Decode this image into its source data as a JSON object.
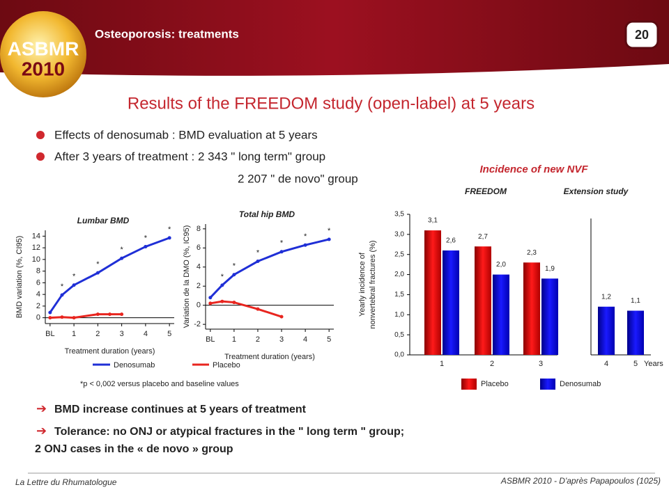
{
  "header": {
    "title": "Osteoporosis: treatments",
    "page": "20",
    "logo_top": "ASBMR",
    "logo_bottom": "2010"
  },
  "title": "Results of the FREEDOM study (open-label) at 5 years",
  "bullets": [
    "Effects of denosumab : BMD evaluation at  5 years",
    "After 3 years of treatment : 2 343  \" long term\" group",
    "2 207  \" de novo\" group"
  ],
  "chart_data": [
    {
      "type": "line",
      "title": "Lumbar BMD",
      "x_label": "Treatment duration (years)",
      "y_label": "BMD variation (%, CI95)",
      "xlim": [
        -0.2,
        5.2
      ],
      "xticks": [
        {
          "value": 0,
          "label": "BL"
        },
        1,
        2,
        3,
        4,
        5
      ],
      "ylim": [
        -1,
        15
      ],
      "yticks": [
        0,
        2,
        4,
        6,
        8,
        10,
        12,
        14
      ],
      "series": [
        {
          "name": "Denosumab",
          "color": "#1f2fd6",
          "x": [
            0,
            0.5,
            1,
            2,
            3,
            4,
            5
          ],
          "values": [
            0.9,
            3.9,
            5.6,
            7.7,
            10.2,
            12.2,
            13.7
          ]
        },
        {
          "name": "Placebo",
          "color": "#e8251f",
          "x": [
            0,
            0.5,
            1,
            2,
            2.5,
            3
          ],
          "values": [
            0,
            0.1,
            0,
            0.6,
            0.6,
            0.6
          ]
        }
      ],
      "annotations": [
        {
          "x": 0.5,
          "label": "*"
        },
        {
          "x": 1,
          "label": "*"
        },
        {
          "x": 2,
          "label": "*"
        },
        {
          "x": 3,
          "label": "*"
        },
        {
          "x": 4,
          "label": "*"
        },
        {
          "x": 5,
          "label": "*"
        }
      ]
    },
    {
      "type": "line",
      "title": "Total hip BMD",
      "x_label": "Treatment duration (years)",
      "y_label": "Variation de la DMO (%, IC95)",
      "xlim": [
        -0.2,
        5.2
      ],
      "xticks": [
        {
          "value": 0,
          "label": "BL"
        },
        1,
        2,
        3,
        4,
        5
      ],
      "ylim": [
        -2.5,
        8.5
      ],
      "yticks": [
        -2,
        0,
        2,
        4,
        6,
        8
      ],
      "series": [
        {
          "name": "Denosumab",
          "color": "#1f2fd6",
          "x": [
            0,
            0.5,
            1,
            2,
            3,
            4,
            5
          ],
          "values": [
            0.8,
            2.1,
            3.2,
            4.6,
            5.6,
            6.3,
            6.9
          ]
        },
        {
          "name": "Placebo",
          "color": "#e8251f",
          "x": [
            0,
            0.5,
            1,
            2,
            3
          ],
          "values": [
            0.2,
            0.4,
            0.3,
            -0.4,
            -1.2
          ]
        }
      ],
      "annotations": [
        {
          "x": 0.5,
          "label": "*"
        },
        {
          "x": 1,
          "label": "*"
        },
        {
          "x": 2,
          "label": "*"
        },
        {
          "x": 3,
          "label": "*"
        },
        {
          "x": 4,
          "label": "*"
        },
        {
          "x": 5,
          "label": "*"
        }
      ]
    },
    {
      "type": "bar",
      "title": "Incidence of new NVF",
      "subtitles": [
        "FREEDOM",
        "Extension study"
      ],
      "y_label": [
        "Yearly incidence of",
        "nonvertebral fractures (%)"
      ],
      "x_label": "Years",
      "categories": [
        "1",
        "2",
        "3",
        "4",
        "5"
      ],
      "ylim": [
        0,
        3.5
      ],
      "yticks": [
        {
          "value": 0,
          "label": "0,0"
        },
        {
          "value": 0.5,
          "label": "0,5"
        },
        {
          "value": 1,
          "label": "1,0"
        },
        {
          "value": 1.5,
          "label": "1,5"
        },
        {
          "value": 2,
          "label": "2,0"
        },
        {
          "value": 2.5,
          "label": "2,5"
        },
        {
          "value": 3,
          "label": "3,0"
        },
        {
          "value": 3.5,
          "label": "3,5"
        }
      ],
      "series": [
        {
          "name": "Placebo",
          "color": "#d40000",
          "values": [
            3.1,
            2.7,
            2.3,
            null,
            null
          ],
          "value_labels": [
            "3,1",
            "2,7",
            "2,3",
            null,
            null
          ]
        },
        {
          "name": "Denosumab",
          "color": "#0000d8",
          "values": [
            2.6,
            2.0,
            1.9,
            1.2,
            1.1
          ],
          "value_labels": [
            "2,6",
            "2,0",
            "1,9",
            "1,2",
            "1,1"
          ]
        }
      ]
    }
  ],
  "footnote": "*p < 0,002 versus placebo and baseline values",
  "conclusions": [
    "BMD increase continues at 5 years of treatment",
    "Tolerance: no ONJ or  atypical  fractures in the \" long term \" group;",
    "2 ONJ cases in the « de novo »  group"
  ],
  "footer": {
    "left": "La Lettre du Rhumatologue",
    "right": "ASBMR 2010 - D'après Papapoulos (1025)"
  }
}
